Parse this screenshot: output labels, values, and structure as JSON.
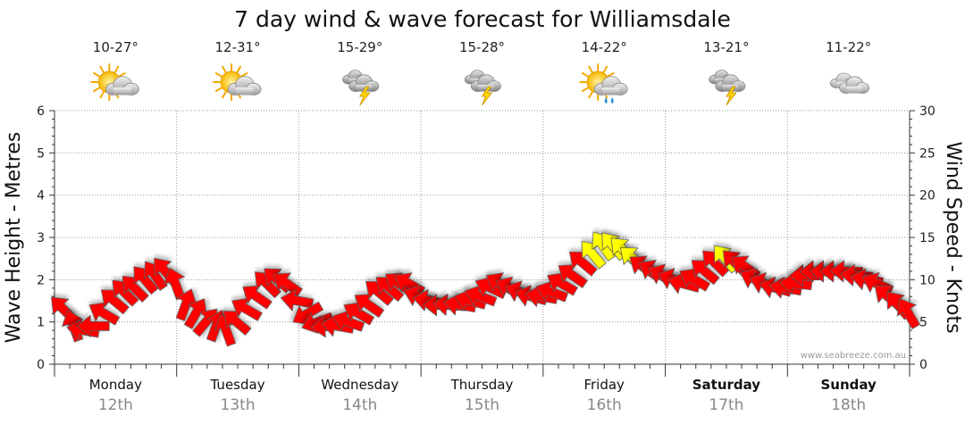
{
  "chart_data": {
    "type": "line",
    "title": "7 day wind & wave forecast for Williamsdale",
    "ylabel_left": "Wave Height - Metres",
    "ylabel_right": "Wind Speed - Knots",
    "ylim_left": [
      0,
      6
    ],
    "ylim_right": [
      0,
      30
    ],
    "yticks_left": [
      "0",
      "1",
      "2",
      "3",
      "4",
      "5",
      "6"
    ],
    "yticks_right": [
      "0",
      "5",
      "10",
      "15",
      "20",
      "25",
      "30"
    ],
    "grid": true,
    "watermark": "www.seabreeze.com.au",
    "days": [
      {
        "day": "Monday",
        "date": "12th",
        "bold": false,
        "temp": "10-27°",
        "weather_icon": "partly-sunny-icon"
      },
      {
        "day": "Tuesday",
        "date": "13th",
        "bold": false,
        "temp": "12-31°",
        "weather_icon": "partly-sunny-icon"
      },
      {
        "day": "Wednesday",
        "date": "14th",
        "bold": false,
        "temp": "15-29°",
        "weather_icon": "thunderstorm-icon"
      },
      {
        "day": "Thursday",
        "date": "15th",
        "bold": false,
        "temp": "15-28°",
        "weather_icon": "thunderstorm-icon"
      },
      {
        "day": "Friday",
        "date": "16th",
        "bold": false,
        "temp": "14-22°",
        "weather_icon": "sun-shower-icon"
      },
      {
        "day": "Saturday",
        "date": "17th",
        "bold": true,
        "temp": "13-21°",
        "weather_icon": "thunderstorm-icon"
      },
      {
        "day": "Sunday",
        "date": "18th",
        "bold": true,
        "temp": "11-22°",
        "weather_icon": "cloudy-icon"
      }
    ],
    "series": [
      {
        "name": "Wind Speed - Knots",
        "x_day_offset": [
          0.0,
          0.083,
          0.167,
          0.25,
          0.333,
          0.417,
          0.5,
          0.583,
          0.667,
          0.75,
          0.833,
          0.917,
          1.0,
          1.083,
          1.167,
          1.25,
          1.333,
          1.417,
          1.5,
          1.583,
          1.667,
          1.75,
          1.833,
          1.917,
          2.0,
          2.083,
          2.167,
          2.25,
          2.333,
          2.417,
          2.5,
          2.583,
          2.667,
          2.75,
          2.833,
          2.917,
          3.0,
          3.083,
          3.167,
          3.25,
          3.333,
          3.417,
          3.5,
          3.583,
          3.667,
          3.75,
          3.833,
          3.917,
          4.0,
          4.083,
          4.167,
          4.25,
          4.333,
          4.417,
          4.5,
          4.583,
          4.667,
          4.75,
          4.833,
          4.917,
          5.0,
          5.083,
          5.167,
          5.25,
          5.333,
          5.417,
          5.5,
          5.583,
          5.667,
          5.75,
          5.833,
          5.917,
          6.0,
          6.083,
          6.167,
          6.25,
          6.333,
          6.417,
          6.5,
          6.583,
          6.667,
          6.75,
          6.833,
          6.917
        ],
        "values": [
          6.5,
          4.5,
          4,
          4.5,
          6,
          7.5,
          8.5,
          9,
          10,
          10.5,
          11,
          9.5,
          7,
          6,
          5,
          4.5,
          4,
          5,
          6.5,
          8,
          9.5,
          10,
          9.5,
          7.5,
          6,
          5,
          4.5,
          4.5,
          5,
          6,
          7,
          8.5,
          9,
          9.5,
          9.5,
          8,
          7.5,
          7,
          7,
          7,
          7.5,
          8,
          9,
          9.5,
          9,
          8.5,
          8,
          8,
          8.5,
          9.5,
          10.5,
          12,
          13,
          14,
          14,
          13.5,
          12.5,
          11.5,
          11,
          10.5,
          10,
          9.5,
          10,
          11,
          12,
          12.5,
          12,
          11.5,
          10,
          9.5,
          9,
          9,
          9.5,
          10.5,
          11,
          11,
          11,
          11,
          10.5,
          10,
          9.5,
          8,
          7,
          6
        ],
        "directions_deg": [
          225,
          200,
          260,
          270,
          240,
          230,
          225,
          225,
          220,
          215,
          220,
          200,
          160,
          150,
          140,
          160,
          200,
          230,
          240,
          235,
          225,
          230,
          235,
          260,
          300,
          290,
          275,
          260,
          250,
          240,
          235,
          230,
          230,
          235,
          240,
          250,
          260,
          270,
          265,
          260,
          255,
          250,
          245,
          240,
          245,
          250,
          255,
          260,
          250,
          240,
          235,
          230,
          220,
          215,
          220,
          225,
          230,
          235,
          240,
          245,
          250,
          255,
          240,
          230,
          225,
          220,
          225,
          235,
          245,
          250,
          255,
          260,
          265,
          270,
          270,
          270,
          270,
          268,
          265,
          260,
          245,
          230,
          220,
          210
        ],
        "color_scale": [
          {
            "min_knots": 0,
            "color": "#ff0000",
            "label": "red"
          },
          {
            "min_knots": 12.5,
            "color": "#ffff00",
            "label": "yellow"
          }
        ]
      }
    ],
    "legend": "none"
  },
  "colors": {
    "arrow_red": "#ff0000",
    "arrow_yellow": "#ffff00",
    "arrow_stroke": "#555555",
    "grid": "#999999",
    "axis": "#333333",
    "date_gray": "#888888"
  }
}
